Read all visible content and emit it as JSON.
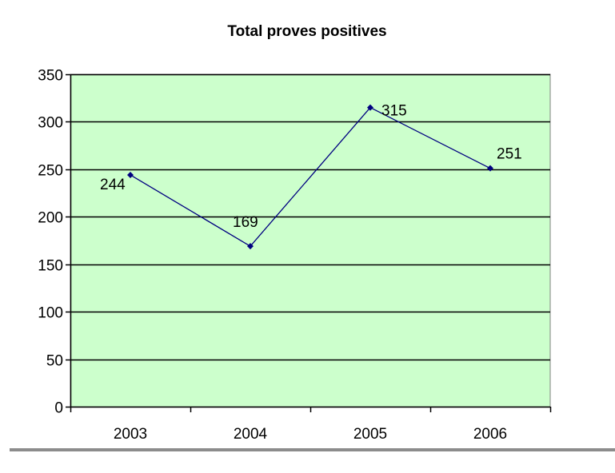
{
  "chart_data": {
    "type": "line",
    "title": "Total proves positives",
    "xlabel": "",
    "ylabel": "",
    "categories": [
      "2003",
      "2004",
      "2005",
      "2006"
    ],
    "series": [
      {
        "values": [
          244,
          169,
          315,
          251
        ],
        "data_labels": [
          "244",
          "169",
          "315",
          "251"
        ],
        "color": "#000080"
      }
    ],
    "ylim": [
      0,
      350
    ],
    "y_ticks": [
      0,
      50,
      100,
      150,
      200,
      250,
      300,
      350
    ],
    "y_tick_labels": [
      "0",
      "50",
      "100",
      "150",
      "200",
      "250",
      "300",
      "350"
    ],
    "grid": true,
    "legend": "none",
    "plot_background": "#ccffcc",
    "gridline_color": "#000000"
  }
}
